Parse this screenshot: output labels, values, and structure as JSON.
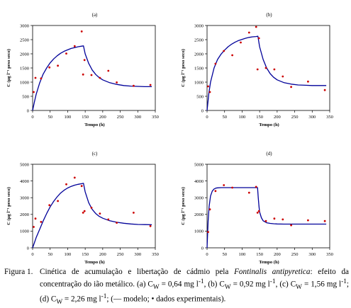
{
  "chart_data": [
    {
      "type": "line",
      "title": "(a)",
      "xlabel": "Tempo (h)",
      "ylabel": "C (µg l⁻¹ peso seco)",
      "xlim": [
        0,
        350
      ],
      "ylim": [
        0,
        3000
      ],
      "xticks": [
        0,
        50,
        100,
        150,
        200,
        250,
        300,
        350
      ],
      "yticks": [
        0,
        500,
        1000,
        1500,
        2000,
        2500,
        3000
      ],
      "grid": false,
      "series": [
        {
          "kind": "model",
          "color": "#000099",
          "x": [
            0,
            5,
            10,
            20,
            30,
            40,
            50,
            60,
            70,
            80,
            90,
            100,
            110,
            120,
            130,
            140,
            145,
            150,
            160,
            170,
            180,
            190,
            200,
            220,
            240,
            260,
            280,
            300,
            320,
            340
          ],
          "y": [
            0,
            300,
            560,
            970,
            1280,
            1500,
            1680,
            1820,
            1930,
            2020,
            2090,
            2140,
            2190,
            2220,
            2250,
            2270,
            2280,
            2000,
            1660,
            1430,
            1270,
            1160,
            1080,
            980,
            920,
            880,
            860,
            850,
            840,
            840
          ]
        },
        {
          "kind": "experimental",
          "color": "#cc0000",
          "x": [
            3,
            8,
            24,
            48,
            72,
            96,
            120,
            140,
            144,
            148,
            168,
            192,
            216,
            240,
            288,
            336
          ],
          "y": [
            650,
            1150,
            1130,
            1520,
            1580,
            2010,
            2270,
            2790,
            1270,
            1780,
            1250,
            1150,
            1400,
            990,
            870,
            900
          ]
        }
      ]
    },
    {
      "type": "line",
      "title": "(b)",
      "xlabel": "Tempo (h)",
      "ylabel": "C (µg l⁻¹ peso seco)",
      "xlim": [
        0,
        350
      ],
      "ylim": [
        0,
        3000
      ],
      "xticks": [
        0,
        50,
        100,
        150,
        200,
        250,
        300,
        350
      ],
      "yticks": [
        0,
        500,
        1000,
        1500,
        2000,
        2500,
        3000
      ],
      "grid": false,
      "series": [
        {
          "kind": "model",
          "color": "#000099",
          "x": [
            0,
            5,
            10,
            20,
            30,
            40,
            50,
            60,
            70,
            80,
            90,
            100,
            110,
            120,
            130,
            140,
            145,
            150,
            160,
            170,
            180,
            190,
            200,
            220,
            240,
            260,
            280,
            300,
            320,
            340
          ],
          "y": [
            0,
            600,
            1000,
            1500,
            1800,
            1990,
            2130,
            2250,
            2340,
            2410,
            2470,
            2510,
            2550,
            2580,
            2600,
            2610,
            2620,
            2250,
            1800,
            1500,
            1300,
            1170,
            1080,
            980,
            930,
            900,
            890,
            880,
            880,
            880
          ]
        },
        {
          "kind": "experimental",
          "color": "#cc0000",
          "x": [
            3,
            8,
            24,
            48,
            72,
            96,
            120,
            140,
            144,
            148,
            168,
            192,
            216,
            240,
            288,
            336
          ],
          "y": [
            850,
            650,
            1650,
            2100,
            1950,
            2400,
            2750,
            2950,
            1450,
            2550,
            1500,
            1450,
            1200,
            830,
            1020,
            720
          ]
        }
      ]
    },
    {
      "type": "line",
      "title": "(c)",
      "xlabel": "Tempo (h)",
      "ylabel": "C (µg l⁻¹ peso seco)",
      "xlim": [
        0,
        350
      ],
      "ylim": [
        0,
        5000
      ],
      "xticks": [
        0,
        50,
        100,
        150,
        200,
        250,
        300,
        350
      ],
      "yticks": [
        0,
        1000,
        2000,
        3000,
        4000,
        5000
      ],
      "grid": false,
      "series": [
        {
          "kind": "model",
          "color": "#000099",
          "x": [
            0,
            5,
            10,
            20,
            30,
            40,
            50,
            60,
            70,
            80,
            90,
            100,
            110,
            120,
            130,
            140,
            145,
            150,
            160,
            170,
            180,
            190,
            200,
            220,
            240,
            260,
            280,
            300,
            320,
            340
          ],
          "y": [
            0,
            300,
            600,
            1100,
            1600,
            2050,
            2450,
            2780,
            3050,
            3280,
            3450,
            3580,
            3680,
            3750,
            3800,
            3840,
            3860,
            3350,
            2700,
            2300,
            2050,
            1880,
            1770,
            1620,
            1530,
            1470,
            1430,
            1400,
            1390,
            1380
          ]
        },
        {
          "kind": "experimental",
          "color": "#cc0000",
          "x": [
            3,
            8,
            24,
            48,
            72,
            96,
            120,
            140,
            144,
            148,
            168,
            192,
            216,
            240,
            288,
            336
          ],
          "y": [
            1250,
            1750,
            1550,
            2550,
            2800,
            3800,
            4200,
            3700,
            2100,
            2200,
            2400,
            2050,
            1700,
            1500,
            2100,
            1300
          ]
        }
      ]
    },
    {
      "type": "line",
      "title": "(d)",
      "xlabel": "Tempo (h)",
      "ylabel": "C (µg l⁻¹ peso seco)",
      "xlim": [
        0,
        350
      ],
      "ylim": [
        0,
        5000
      ],
      "xticks": [
        0,
        50,
        100,
        150,
        200,
        250,
        300,
        350
      ],
      "yticks": [
        0,
        1000,
        2000,
        3000,
        4000,
        5000
      ],
      "grid": false,
      "series": [
        {
          "kind": "model",
          "color": "#000099",
          "x": [
            0,
            3,
            6,
            10,
            15,
            20,
            25,
            30,
            40,
            50,
            60,
            80,
            100,
            120,
            140,
            144,
            146,
            148,
            150,
            155,
            160,
            170,
            180,
            190,
            200,
            220,
            240,
            260,
            280,
            300,
            320,
            340
          ],
          "y": [
            0,
            1600,
            2500,
            3100,
            3400,
            3520,
            3570,
            3590,
            3600,
            3600,
            3600,
            3600,
            3600,
            3600,
            3600,
            3600,
            3000,
            2500,
            2150,
            1800,
            1620,
            1500,
            1460,
            1440,
            1430,
            1420,
            1420,
            1420,
            1420,
            1420,
            1420,
            1420
          ]
        },
        {
          "kind": "experimental",
          "color": "#cc0000",
          "x": [
            3,
            8,
            24,
            48,
            72,
            120,
            140,
            144,
            148,
            168,
            192,
            216,
            240,
            288,
            336
          ],
          "y": [
            950,
            2300,
            3400,
            3750,
            3600,
            3300,
            3650,
            2100,
            2200,
            1600,
            1750,
            1700,
            1350,
            1650,
            1600
          ]
        }
      ]
    }
  ],
  "caption": {
    "label": "Figura 1.",
    "line1_pre": "Cinética de acumulação e libertação de cádmio pela ",
    "species": "Fontinalis antipyretica",
    "line1_post": ": efeito da",
    "line2": "concentração do ião metálico. (a) C",
    "rest_a": " = 0,64 mg l",
    "rest_b": ", (b) C",
    "rest_c": " = 0,92 mg l",
    "rest_d": ", (c) C",
    "rest_e": " = 1,56",
    "line3_start": "mg l",
    "line3_a": "; (d) C",
    "line3_b": " = 2,26 mg l",
    "line3_c": "; (— modelo; • dados experimentais).",
    "sub_w": "W",
    "sup_neg1": "-1"
  }
}
